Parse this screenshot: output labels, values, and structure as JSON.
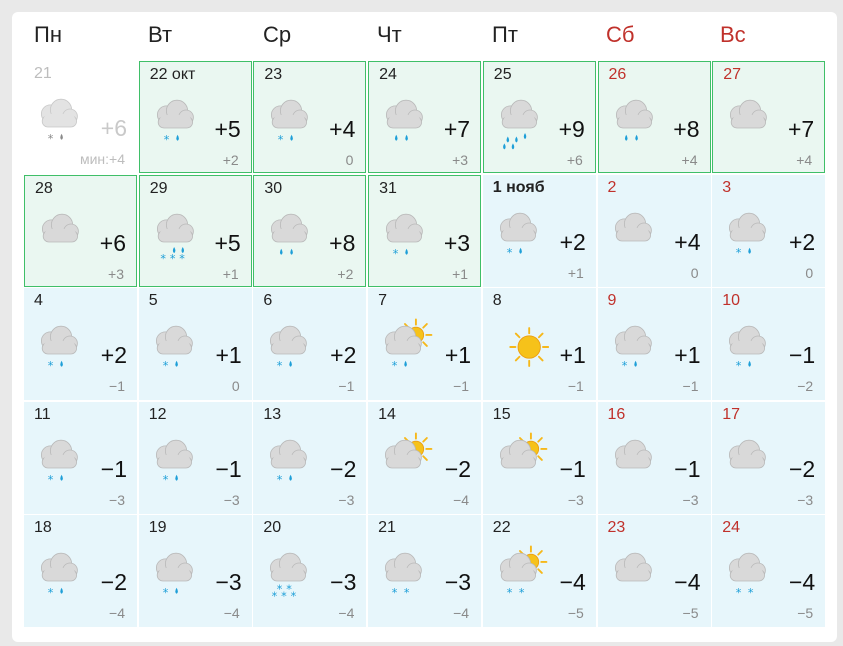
{
  "weekdays": [
    {
      "label": "Пн",
      "weekend": false
    },
    {
      "label": "Вт",
      "weekend": false
    },
    {
      "label": "Ср",
      "weekend": false
    },
    {
      "label": "Чт",
      "weekend": false
    },
    {
      "label": "Пт",
      "weekend": false
    },
    {
      "label": "Сб",
      "weekend": true
    },
    {
      "label": "Вс",
      "weekend": true
    }
  ],
  "colors": {
    "weekend": "#c0312b",
    "selected_border": "#3fbf68",
    "cell_bg": "#e7f6fb",
    "snow": "#1e9fd8",
    "rain": "#1e9fd8",
    "sun": "#f6b81a"
  },
  "days": [
    {
      "date": "21",
      "max": "+6",
      "min": "мин:+4",
      "icon": "cloud-snow-rain-icon",
      "past": true
    },
    {
      "date": "22 окт",
      "max": "+5",
      "min": "+2",
      "icon": "cloud-snow-rain-icon",
      "selected": true
    },
    {
      "date": "23",
      "max": "+4",
      "min": "0",
      "icon": "cloud-snow-rain-icon",
      "selected": true
    },
    {
      "date": "24",
      "max": "+7",
      "min": "+3",
      "icon": "cloud-rain-icon",
      "selected": true
    },
    {
      "date": "25",
      "max": "+9",
      "min": "+6",
      "icon": "cloud-heavy-rain-icon",
      "selected": true
    },
    {
      "date": "26",
      "max": "+8",
      "min": "+4",
      "icon": "cloud-rain-icon",
      "selected": true,
      "weekend": true
    },
    {
      "date": "27",
      "max": "+7",
      "min": "+4",
      "icon": "cloud-icon",
      "selected": true,
      "weekend": true
    },
    {
      "date": "28",
      "max": "+6",
      "min": "+3",
      "icon": "cloud-icon",
      "selected": true
    },
    {
      "date": "29",
      "max": "+5",
      "min": "+1",
      "icon": "cloud-heavy-snow-rain-icon",
      "selected": true
    },
    {
      "date": "30",
      "max": "+8",
      "min": "+2",
      "icon": "cloud-rain-icon",
      "selected": true
    },
    {
      "date": "31",
      "max": "+3",
      "min": "+1",
      "icon": "cloud-snow-rain-icon",
      "selected": true
    },
    {
      "date": "1 нояб",
      "max": "+2",
      "min": "+1",
      "icon": "cloud-snow-rain-icon",
      "bold": true
    },
    {
      "date": "2",
      "max": "+4",
      "min": "0",
      "icon": "cloud-icon",
      "weekend": true
    },
    {
      "date": "3",
      "max": "+2",
      "min": "0",
      "icon": "cloud-snow-rain-icon",
      "weekend": true
    },
    {
      "date": "4",
      "max": "+2",
      "min": "−1",
      "icon": "cloud-snow-rain-icon"
    },
    {
      "date": "5",
      "max": "+1",
      "min": "0",
      "icon": "cloud-snow-rain-icon"
    },
    {
      "date": "6",
      "max": "+2",
      "min": "−1",
      "icon": "cloud-snow-rain-icon"
    },
    {
      "date": "7",
      "max": "+1",
      "min": "−1",
      "icon": "sun-cloud-snow-rain-icon"
    },
    {
      "date": "8",
      "max": "+1",
      "min": "−1",
      "icon": "sun-icon"
    },
    {
      "date": "9",
      "max": "+1",
      "min": "−1",
      "icon": "cloud-snow-rain-icon",
      "weekend": true
    },
    {
      "date": "10",
      "max": "−1",
      "min": "−2",
      "icon": "cloud-snow-rain-icon",
      "weekend": true
    },
    {
      "date": "11",
      "max": "−1",
      "min": "−3",
      "icon": "cloud-snow-rain-icon"
    },
    {
      "date": "12",
      "max": "−1",
      "min": "−3",
      "icon": "cloud-snow-rain-icon"
    },
    {
      "date": "13",
      "max": "−2",
      "min": "−3",
      "icon": "cloud-snow-rain-icon"
    },
    {
      "date": "14",
      "max": "−2",
      "min": "−4",
      "icon": "sun-cloud-icon"
    },
    {
      "date": "15",
      "max": "−1",
      "min": "−3",
      "icon": "sun-cloud-icon"
    },
    {
      "date": "16",
      "max": "−1",
      "min": "−3",
      "icon": "cloud-icon",
      "weekend": true
    },
    {
      "date": "17",
      "max": "−2",
      "min": "−3",
      "icon": "cloud-icon",
      "weekend": true
    },
    {
      "date": "18",
      "max": "−2",
      "min": "−4",
      "icon": "cloud-snow-rain-icon"
    },
    {
      "date": "19",
      "max": "−3",
      "min": "−4",
      "icon": "cloud-snow-rain-icon"
    },
    {
      "date": "20",
      "max": "−3",
      "min": "−4",
      "icon": "cloud-heavy-snow-icon"
    },
    {
      "date": "21",
      "max": "−3",
      "min": "−4",
      "icon": "cloud-snow-icon"
    },
    {
      "date": "22",
      "max": "−4",
      "min": "−5",
      "icon": "sun-cloud-snow-icon"
    },
    {
      "date": "23",
      "max": "−4",
      "min": "−5",
      "icon": "cloud-icon",
      "weekend": true
    },
    {
      "date": "24",
      "max": "−4",
      "min": "−5",
      "icon": "cloud-snow-icon",
      "weekend": true
    }
  ]
}
